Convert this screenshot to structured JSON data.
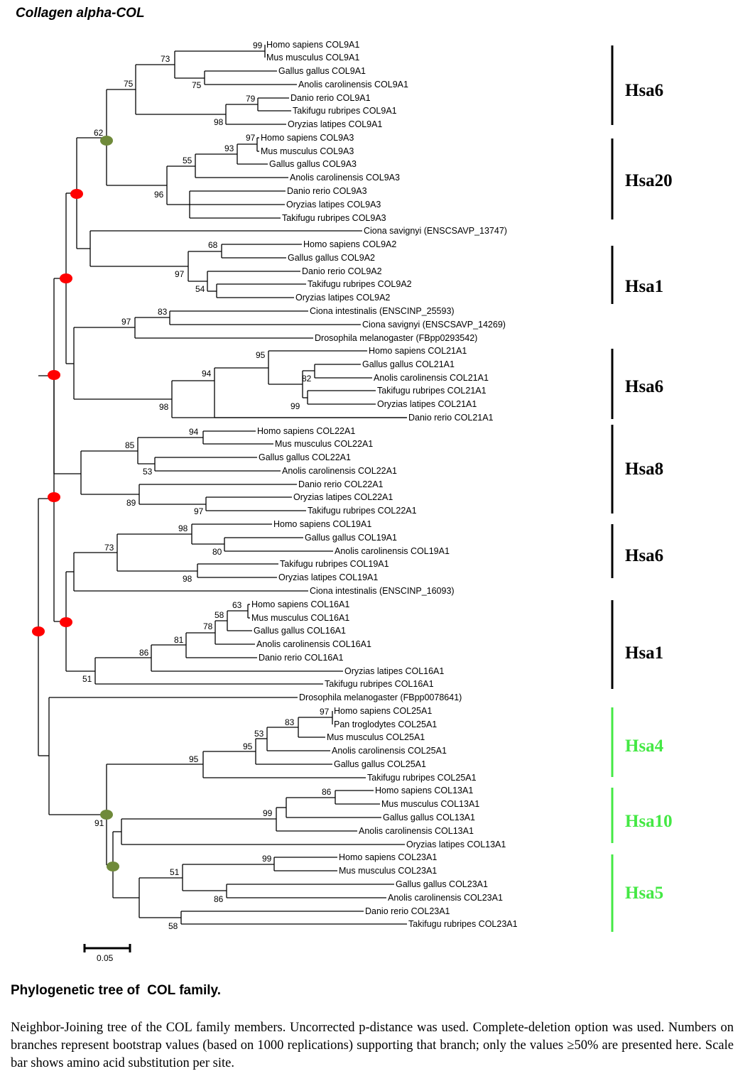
{
  "title": "Collagen alpha-COL",
  "caption": {
    "heading": "Phylogenetic tree of  COL family.",
    "body": "Neighbor-Joining tree of the COL family members. Uncorrected p-distance was used. Complete-deletion option was used. Numbers on branches represent bootstrap values (based on 1000 replications) supporting that branch; only the values ≥50% are presented here. Scale bar shows amino acid substitution per site."
  },
  "scale_bar": {
    "label": "0.05"
  },
  "colors": {
    "black": "#000000",
    "green": "#44e844",
    "olive_node": "#6f8a3a",
    "red_node": "#ff0000"
  },
  "taxa": [
    "Homo sapiens COL9A1",
    "Mus musculus COL9A1",
    "Gallus gallus COL9A1",
    "Anolis carolinensis COL9A1",
    "Danio rerio COL9A1",
    "Takifugu rubripes COL9A1",
    "Oryzias latipes COL9A1",
    "Homo sapiens COL9A3",
    "Mus musculus COL9A3",
    "Gallus gallus COL9A3",
    "Anolis carolinensis COL9A3",
    "Danio rerio COL9A3",
    "Oryzias latipes COL9A3",
    "Takifugu rubripes COL9A3",
    "Ciona savignyi (ENSCSAVP_13747)",
    "Homo sapiens COL9A2",
    "Gallus gallus COL9A2",
    "Danio rerio COL9A2",
    "Takifugu rubripes COL9A2",
    "Oryzias latipes COL9A2",
    "Ciona intestinalis (ENSCINP_25593)",
    "Ciona savignyi (ENSCSAVP_14269)",
    "Drosophila melanogaster (FBpp0293542)",
    "Homo sapiens COL21A1",
    "Gallus gallus COL21A1",
    "Anolis carolinensis COL21A1",
    "Takifugu rubripes COL21A1",
    "Oryzias latipes COL21A1",
    "Danio rerio COL21A1",
    "Homo sapiens COL22A1",
    "Mus musculus COL22A1",
    "Gallus gallus COL22A1",
    "Anolis carolinensis COL22A1",
    "Danio rerio COL22A1",
    "Oryzias latipes COL22A1",
    "Takifugu rubripes COL22A1",
    "Homo sapiens COL19A1",
    "Gallus gallus COL19A1",
    "Anolis carolinensis COL19A1",
    "Takifugu rubripes COL19A1",
    "Oryzias latipes COL19A1",
    "Ciona intestinalis (ENSCINP_16093)",
    "Homo sapiens COL16A1",
    "Mus musculus COL16A1",
    "Gallus gallus COL16A1",
    "Anolis carolinensis COL16A1",
    "Danio rerio COL16A1",
    "Oryzias latipes COL16A1",
    "Takifugu rubripes COL16A1",
    "Drosophila melanogaster (FBpp0078641)",
    "Homo sapiens COL25A1",
    "Pan troglodytes COL25A1",
    "Mus musculus COL25A1",
    "Anolis carolinensis COL25A1",
    "Gallus gallus COL25A1",
    "Takifugu rubripes COL25A1",
    "Homo sapiens COL13A1",
    "Mus musculus COL13A1",
    "Gallus gallus COL13A1",
    "Anolis carolinensis COL13A1",
    "Oryzias latipes COL13A1",
    "Homo sapiens COL23A1",
    "Mus musculus COL23A1",
    "Gallus gallus COL23A1",
    "Anolis carolinensis COL23A1",
    "Danio rerio COL23A1",
    "Takifugu rubripes COL23A1"
  ],
  "bootstrap_values": [
    "99",
    "73",
    "75",
    "75",
    "79",
    "98",
    "62",
    "97",
    "93",
    "55",
    "96",
    "68",
    "97",
    "54",
    "83",
    "97",
    "95",
    "94",
    "82",
    "98",
    "99",
    "94",
    "85",
    "53",
    "89",
    "97",
    "98",
    "73",
    "80",
    "98",
    "63",
    "58",
    "78",
    "81",
    "86",
    "51",
    "97",
    "83",
    "53",
    "95",
    "95",
    "86",
    "99",
    "91",
    "99",
    "51",
    "86",
    "58"
  ],
  "chromosome_groups": [
    {
      "label": "Hsa6",
      "color": "black"
    },
    {
      "label": "Hsa20",
      "color": "black"
    },
    {
      "label": "Hsa1",
      "color": "black"
    },
    {
      "label": "Hsa6",
      "color": "black"
    },
    {
      "label": "Hsa8",
      "color": "black"
    },
    {
      "label": "Hsa6",
      "color": "black"
    },
    {
      "label": "Hsa1",
      "color": "black"
    },
    {
      "label": "Hsa4",
      "color": "green"
    },
    {
      "label": "Hsa10",
      "color": "green"
    },
    {
      "label": "Hsa5",
      "color": "green"
    }
  ]
}
